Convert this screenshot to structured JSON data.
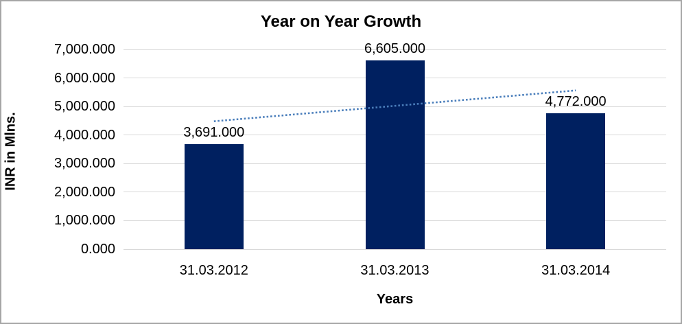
{
  "chart_data": {
    "type": "bar",
    "title": "Year on Year Growth",
    "xlabel": "Years",
    "ylabel": "INR in Mlns.",
    "categories": [
      "31.03.2012",
      "31.03.2013",
      "31.03.2014"
    ],
    "series": [
      {
        "name": "INR in Mlns.",
        "values": [
          3691,
          6605,
          4772
        ],
        "value_labels": [
          "3,691.000",
          "6,605.000",
          "4,772.000"
        ],
        "color": "#002060"
      }
    ],
    "ylim": [
      0,
      7000
    ],
    "y_tick_values": [
      0,
      1000,
      2000,
      3000,
      4000,
      5000,
      6000,
      7000
    ],
    "y_tick_labels": [
      "0.000",
      "1,000.000",
      "2,000.000",
      "3,000.000",
      "4,000.000",
      "5,000.000",
      "6,000.000",
      "7,000.000"
    ],
    "grid": "horizontal",
    "gridline_color": "#d9d9d9",
    "legend": "none",
    "trendline": {
      "type": "linear",
      "style": "dotted",
      "color": "#4a7ebb",
      "start_value": 4482,
      "end_value": 5563
    }
  }
}
